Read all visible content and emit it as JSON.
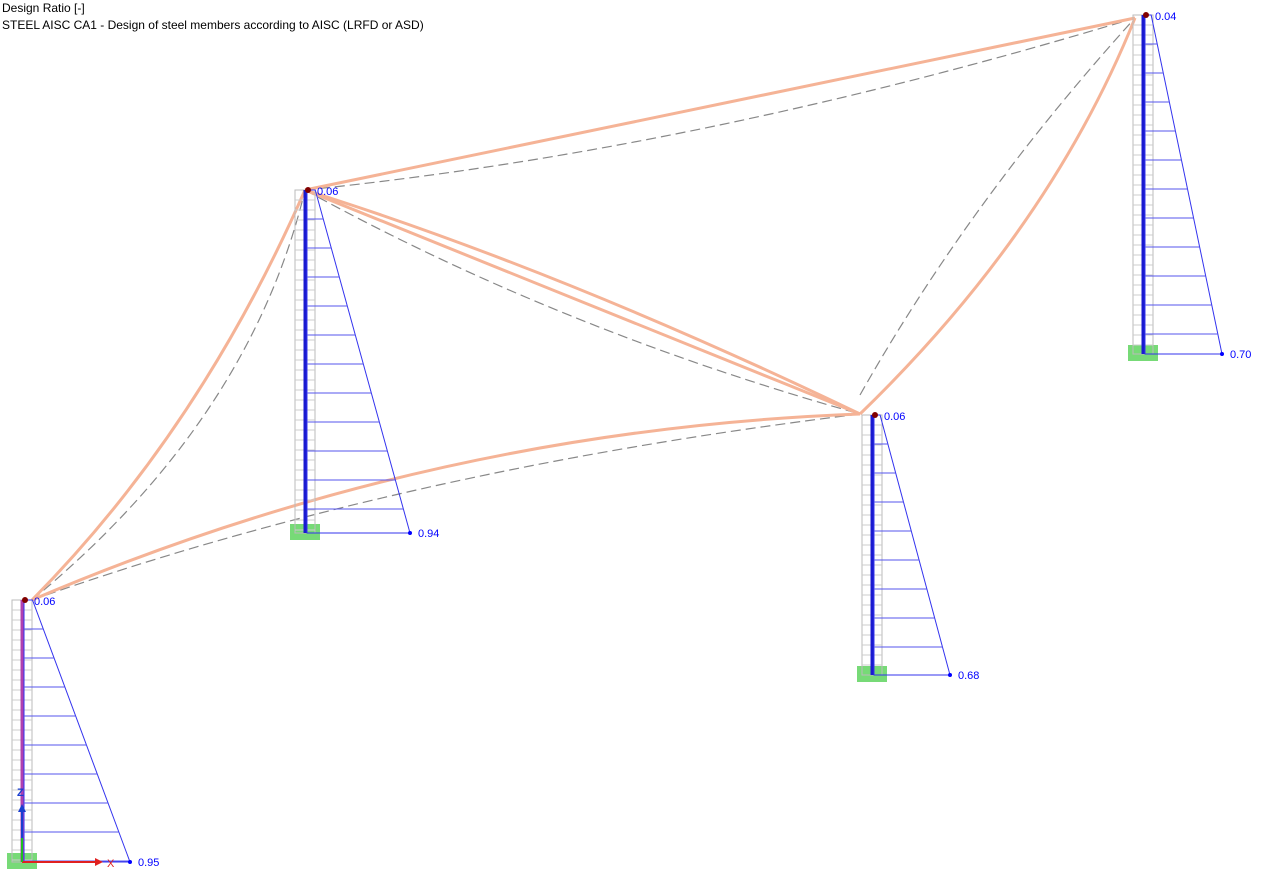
{
  "header": {
    "title": "Design Ratio [-]",
    "subtitle": "STEEL AISC CA1 - Design of steel members according to AISC (LRFD or ASD)"
  },
  "columns": [
    {
      "top": "0.06",
      "bottom": "0.95"
    },
    {
      "top": "0.06",
      "bottom": "0.94"
    },
    {
      "top": "0.06",
      "bottom": "0.68"
    },
    {
      "top": "0.04",
      "bottom": "0.70"
    }
  ],
  "axes": {
    "z": "Z",
    "x": "X"
  }
}
